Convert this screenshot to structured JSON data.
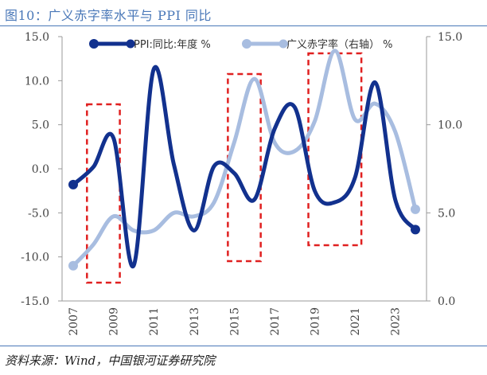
{
  "title": "图10：广义赤字率水平与 PPI 同比",
  "source": "资料来源：Wind，中国银河证券研究院",
  "colors": {
    "ppi": "#12318e",
    "deficit": "#a8bde0",
    "box": "#e02020",
    "title": "#4a78b8"
  },
  "chart_data": {
    "type": "line",
    "x_ticks": [
      "2007",
      "2009",
      "2011",
      "2013",
      "2015",
      "2017",
      "2019",
      "2021",
      "2023"
    ],
    "y_left": {
      "ticks": [
        "15.0",
        "10.0",
        "5.0",
        "0.0",
        "-5.0",
        "-10.0",
        "-15.0"
      ],
      "range": [
        -15,
        15
      ]
    },
    "y_right": {
      "ticks": [
        "15.0",
        "10.0",
        "5.0",
        "0.0"
      ],
      "range": [
        0,
        15
      ]
    },
    "series": [
      {
        "name": "PPI:同比:年度 %",
        "axis": "left",
        "x": [
          2007,
          2008,
          2009,
          2010,
          2011,
          2012,
          2013,
          2014,
          2015,
          2016,
          2017,
          2018,
          2019,
          2020,
          2021,
          2022,
          2023,
          2024
        ],
        "values": [
          -1.8,
          0.2,
          3.5,
          -11.0,
          11.3,
          0.5,
          -7.0,
          0.3,
          -0.5,
          -3.5,
          4.5,
          7.0,
          -2.5,
          -3.8,
          -1.0,
          9.8,
          -3.5,
          -6.9
        ]
      },
      {
        "name": "广义赤字率（右轴） %",
        "axis": "right",
        "x": [
          2007,
          2008,
          2009,
          2010,
          2011,
          2012,
          2013,
          2014,
          2015,
          2016,
          2017,
          2018,
          2019,
          2020,
          2021,
          2022,
          2023,
          2024
        ],
        "values": [
          2.0,
          3.2,
          4.8,
          4.0,
          4.0,
          5.0,
          4.8,
          5.6,
          9.0,
          12.6,
          9.0,
          8.5,
          10.2,
          14.2,
          10.3,
          11.2,
          9.6,
          5.2
        ]
      }
    ],
    "highlight_ranges": [
      [
        2008,
        2009
      ],
      [
        2015,
        2016
      ],
      [
        2019,
        2021
      ]
    ],
    "legend_position": "top"
  }
}
